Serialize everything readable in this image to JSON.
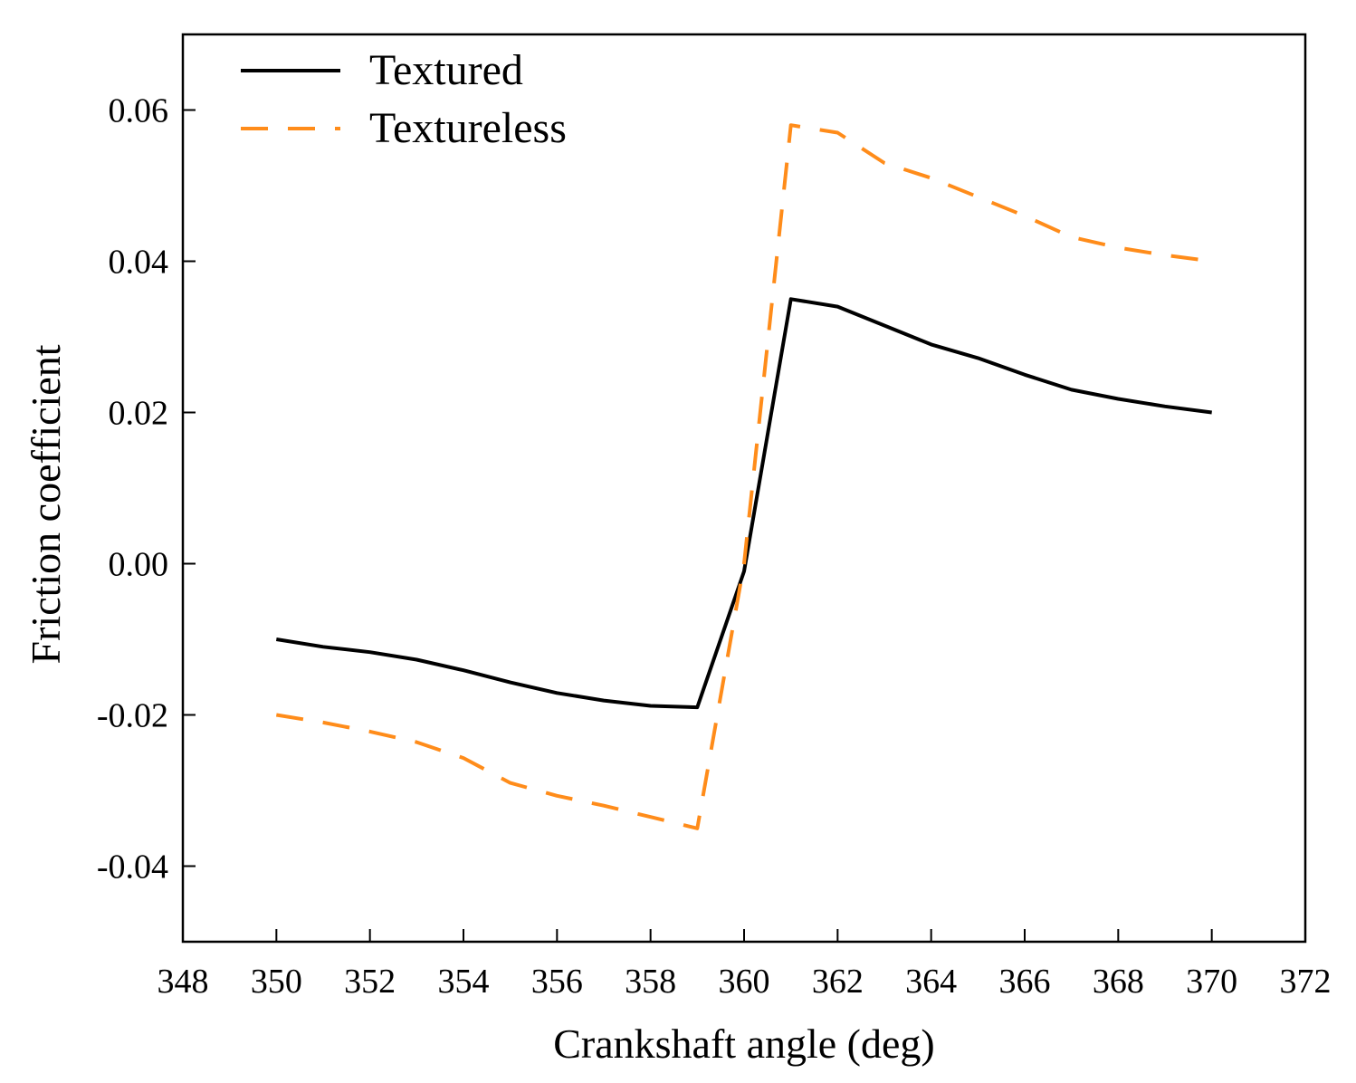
{
  "chart_data": {
    "type": "line",
    "title": "",
    "xlabel": "Crankshaft angle (deg)",
    "ylabel": "Friction coefficient",
    "xlim": [
      348,
      372
    ],
    "ylim": [
      -0.05,
      0.07
    ],
    "xticks": [
      348,
      350,
      352,
      354,
      356,
      358,
      360,
      362,
      364,
      366,
      368,
      370,
      372
    ],
    "xtick_labels": [
      "348",
      "350",
      "352",
      "354",
      "356",
      "358",
      "360",
      "362",
      "364",
      "366",
      "368",
      "370",
      "372"
    ],
    "yticks": [
      -0.04,
      -0.02,
      0.0,
      0.02,
      0.04,
      0.06
    ],
    "ytick_labels": [
      "-0.04",
      "-0.02",
      "0.00",
      "0.02",
      "0.04",
      "0.06"
    ],
    "legend_position": "top-left",
    "grid": false,
    "series": [
      {
        "name": "Textured",
        "color": "#000000",
        "style": "solid",
        "x": [
          350,
          351,
          352,
          353,
          354,
          355,
          356,
          357,
          358,
          359,
          360,
          361,
          362,
          363,
          364,
          365,
          366,
          367,
          368,
          369,
          370
        ],
        "y": [
          -0.01,
          -0.011,
          -0.0117,
          -0.0127,
          -0.0141,
          -0.0157,
          -0.0171,
          -0.0181,
          -0.0188,
          -0.019,
          -0.001,
          0.035,
          0.034,
          0.0315,
          0.029,
          0.0272,
          0.025,
          0.023,
          0.0218,
          0.0208,
          0.02
        ]
      },
      {
        "name": "Textureless",
        "color": "#ff8c1a",
        "style": "dashed",
        "x": [
          350,
          351,
          352,
          353,
          354,
          355,
          356,
          357,
          358,
          359,
          360,
          361,
          362,
          363,
          364,
          365,
          366,
          367,
          368,
          369,
          370
        ],
        "y": [
          -0.02,
          -0.021,
          -0.0222,
          -0.0236,
          -0.0257,
          -0.029,
          -0.0307,
          -0.032,
          -0.0335,
          -0.035,
          0.0,
          0.058,
          0.057,
          0.053,
          0.051,
          0.0485,
          0.046,
          0.0432,
          0.0418,
          0.0408,
          0.04
        ]
      }
    ]
  }
}
